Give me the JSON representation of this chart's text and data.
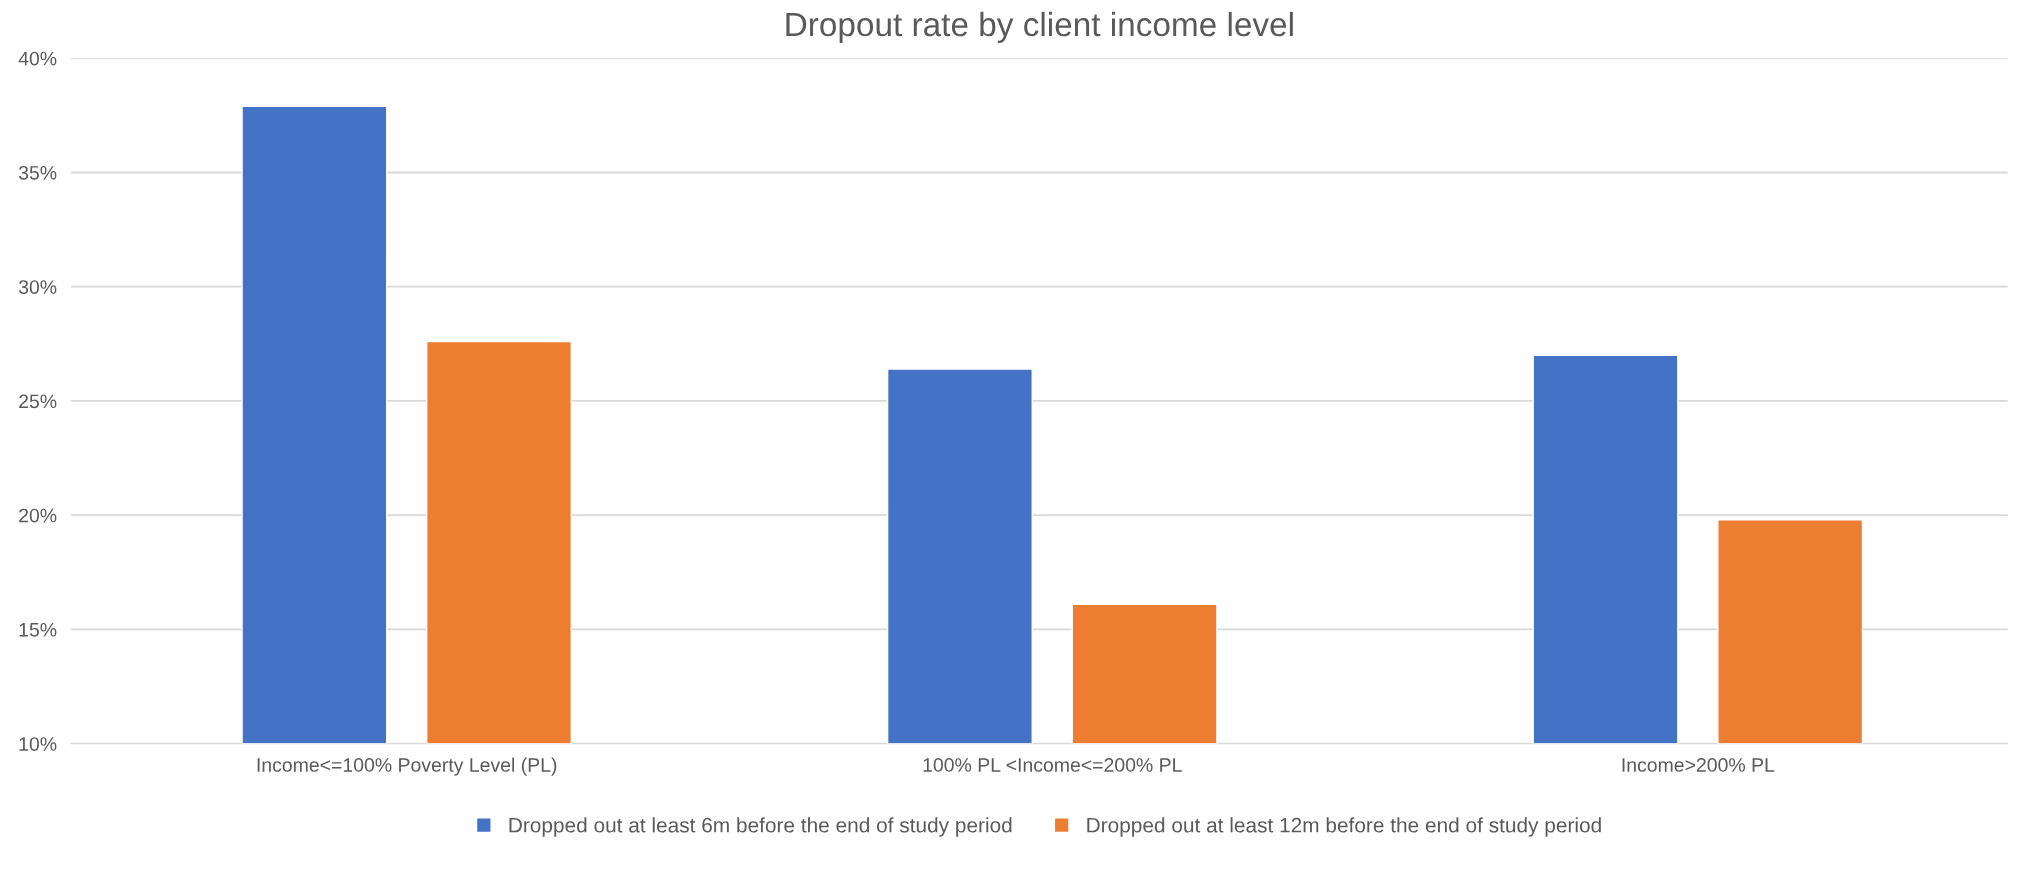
{
  "chart_data": {
    "type": "bar",
    "title": "Dropout rate by client income level",
    "categories": [
      "Income<=100% Poverty Level (PL)",
      "100% PL <Income<=200% PL",
      "Income>200% PL"
    ],
    "series": [
      {
        "name": "Dropped out at least 6m before the end of study period",
        "color": "#4472c4",
        "values": [
          37.9,
          26.4,
          27.0
        ]
      },
      {
        "name": "Dropped out at least 12m before the end of study period",
        "color": "#ed7d31",
        "values": [
          27.6,
          16.1,
          19.8
        ]
      }
    ],
    "ylim": [
      10,
      40
    ],
    "yticks": [
      {
        "value": 10,
        "label": "10%"
      },
      {
        "value": 15,
        "label": "15%"
      },
      {
        "value": 20,
        "label": "20%"
      },
      {
        "value": 25,
        "label": "25%"
      },
      {
        "value": 30,
        "label": "30%"
      },
      {
        "value": 35,
        "label": "35%"
      },
      {
        "value": 40,
        "label": "40%"
      }
    ],
    "grid": "y",
    "legend": "bottom"
  }
}
